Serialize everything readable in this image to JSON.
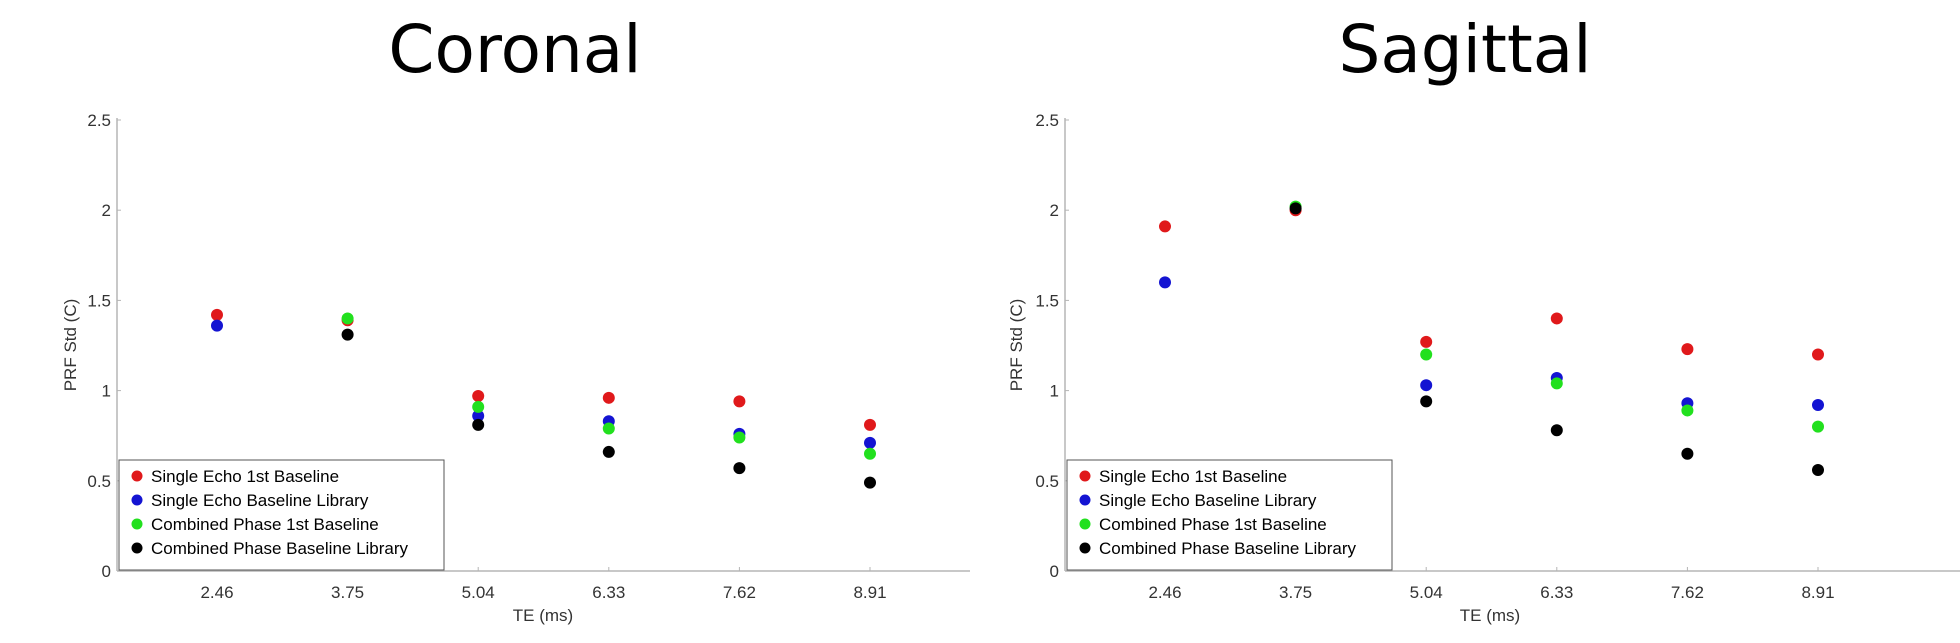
{
  "colors": {
    "single_echo_1st_baseline": "#e0191b",
    "single_echo_baseline_library": "#1414d2",
    "combined_phase_1st_baseline": "#22e01e",
    "combined_phase_baseline_library": "#000000"
  },
  "chart_data": [
    {
      "type": "scatter",
      "title": "Coronal",
      "xlabel": "TE (ms)",
      "ylabel": "PRF Std (C)",
      "categories": [
        "2.46",
        "3.75",
        "5.04",
        "6.33",
        "7.62",
        "8.91"
      ],
      "yticks": [
        "0",
        "0.5",
        "1",
        "1.5",
        "2",
        "2.5"
      ],
      "ylim": [
        0,
        2.5
      ],
      "grid": false,
      "legend_position": "bottom-left",
      "series": [
        {
          "name": "Single Echo 1st Baseline",
          "color": "#e0191b",
          "values": [
            1.42,
            1.39,
            0.97,
            0.96,
            0.94,
            0.81
          ]
        },
        {
          "name": "Single Echo Baseline Library",
          "color": "#1414d2",
          "values": [
            1.36,
            null,
            0.86,
            0.83,
            0.76,
            0.71
          ]
        },
        {
          "name": "Combined Phase 1st Baseline",
          "color": "#22e01e",
          "values": [
            null,
            1.4,
            0.91,
            0.79,
            0.74,
            0.65
          ]
        },
        {
          "name": "Combined Phase Baseline Library",
          "color": "#000000",
          "values": [
            null,
            1.31,
            0.81,
            0.66,
            0.57,
            0.49
          ]
        }
      ]
    },
    {
      "type": "scatter",
      "title": "Sagittal",
      "xlabel": "TE (ms)",
      "ylabel": "PRF Std (C)",
      "categories": [
        "2.46",
        "3.75",
        "5.04",
        "6.33",
        "7.62",
        "8.91"
      ],
      "yticks": [
        "0",
        "0.5",
        "1",
        "1.5",
        "2",
        "2.5"
      ],
      "ylim": [
        0,
        2.5
      ],
      "grid": false,
      "legend_position": "bottom-left",
      "series": [
        {
          "name": "Single Echo 1st Baseline",
          "color": "#e0191b",
          "values": [
            1.91,
            2.0,
            1.27,
            1.4,
            1.23,
            1.2
          ]
        },
        {
          "name": "Single Echo Baseline Library",
          "color": "#1414d2",
          "values": [
            1.6,
            null,
            1.03,
            1.07,
            0.93,
            0.92
          ]
        },
        {
          "name": "Combined Phase 1st Baseline",
          "color": "#22e01e",
          "values": [
            null,
            2.02,
            1.2,
            1.04,
            0.89,
            0.8
          ]
        },
        {
          "name": "Combined Phase Baseline Library",
          "color": "#000000",
          "values": [
            null,
            2.01,
            0.94,
            0.78,
            0.65,
            0.56
          ]
        }
      ]
    }
  ]
}
